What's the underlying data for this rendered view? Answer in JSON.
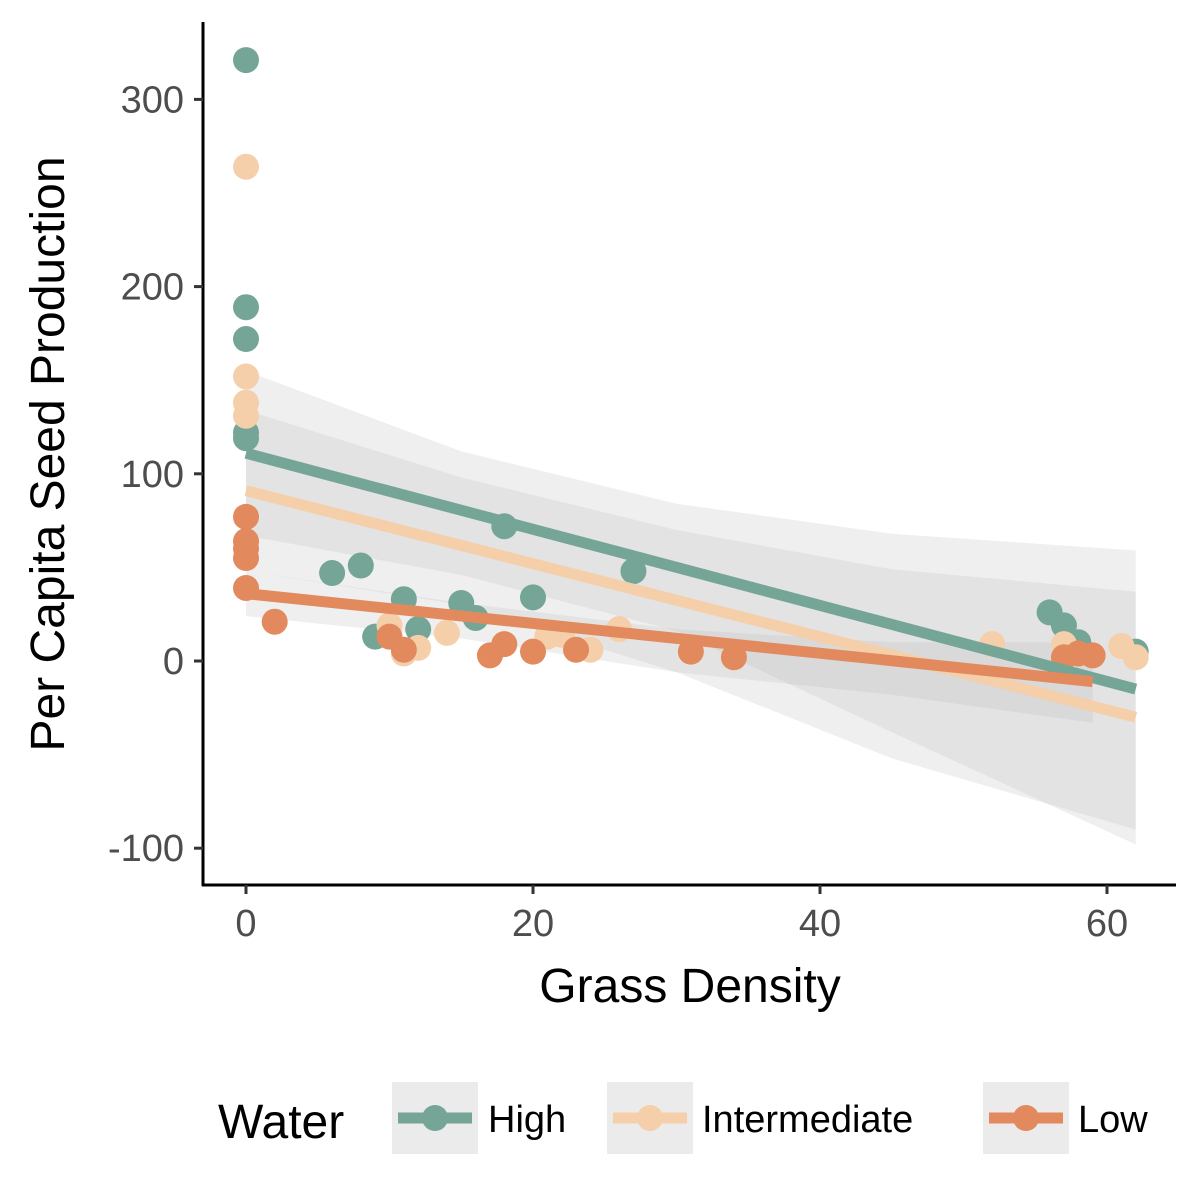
{
  "chart_data": {
    "type": "scatter",
    "xlabel": "Grass Density",
    "ylabel": "Per Capita Seed Production",
    "xlim": [
      -3,
      65
    ],
    "ylim": [
      -120,
      342
    ],
    "x_ticks": [
      0,
      20,
      40,
      60
    ],
    "y_ticks": [
      -100,
      0,
      100,
      200,
      300
    ],
    "x_tick_labels": [
      "0",
      "20",
      "40",
      "60"
    ],
    "y_tick_labels": [
      "-100",
      "0",
      "100",
      "200",
      "300"
    ],
    "grid": false,
    "legend": {
      "title": "Water",
      "position": "bottom",
      "entries": [
        "High",
        "Intermediate",
        "Low"
      ]
    },
    "series": [
      {
        "name": "High",
        "color": "#74a597",
        "points": [
          [
            0,
            321
          ],
          [
            0,
            189
          ],
          [
            0,
            172
          ],
          [
            0,
            122
          ],
          [
            0,
            119
          ],
          [
            6,
            47
          ],
          [
            8,
            51
          ],
          [
            9,
            13
          ],
          [
            11,
            33
          ],
          [
            12,
            17
          ],
          [
            15,
            31
          ],
          [
            16,
            23
          ],
          [
            18,
            72
          ],
          [
            20,
            34
          ],
          [
            27,
            48
          ],
          [
            56,
            26
          ],
          [
            57,
            19
          ],
          [
            58,
            10
          ],
          [
            62,
            5
          ]
        ],
        "fit": {
          "x": [
            0,
            62
          ],
          "y": [
            111,
            -15
          ]
        },
        "ci_band": {
          "x": [
            0,
            15,
            30,
            45,
            62
          ],
          "upper": [
            155,
            112,
            84,
            68,
            59
          ],
          "lower": [
            67,
            46,
            16,
            -38,
            -98
          ]
        }
      },
      {
        "name": "Intermediate",
        "color": "#f4cfa9",
        "points": [
          [
            0,
            264
          ],
          [
            0,
            152
          ],
          [
            0,
            138
          ],
          [
            0,
            131
          ],
          [
            10,
            19
          ],
          [
            11,
            4
          ],
          [
            12,
            7
          ],
          [
            14,
            15
          ],
          [
            21,
            13
          ],
          [
            22,
            14
          ],
          [
            24,
            6
          ],
          [
            26,
            17
          ],
          [
            52,
            9
          ],
          [
            57,
            9
          ],
          [
            61,
            8
          ],
          [
            62,
            2
          ]
        ],
        "fit": {
          "x": [
            0,
            62
          ],
          "y": [
            91,
            -30
          ]
        },
        "ci_band": {
          "x": [
            0,
            15,
            30,
            45,
            62
          ],
          "upper": [
            134,
            98,
            70,
            49,
            37
          ],
          "lower": [
            48,
            30,
            -6,
            -52,
            -90
          ]
        }
      },
      {
        "name": "Low",
        "color": "#e2895d",
        "points": [
          [
            0,
            77
          ],
          [
            0,
            64
          ],
          [
            0,
            60
          ],
          [
            0,
            55
          ],
          [
            0,
            39
          ],
          [
            2,
            21
          ],
          [
            10,
            13
          ],
          [
            11,
            6
          ],
          [
            17,
            3
          ],
          [
            18,
            9
          ],
          [
            20,
            5
          ],
          [
            23,
            6
          ],
          [
            31,
            5
          ],
          [
            34,
            2
          ],
          [
            57,
            2
          ],
          [
            58,
            4
          ],
          [
            59,
            3
          ]
        ],
        "fit": {
          "x": [
            0,
            59
          ],
          "y": [
            36,
            -11
          ]
        },
        "ci_band": {
          "x": [
            0,
            15,
            30,
            45,
            59
          ],
          "upper": [
            48,
            31,
            17,
            10,
            10
          ],
          "lower": [
            24,
            12,
            -6,
            -18,
            -33
          ]
        }
      }
    ]
  }
}
